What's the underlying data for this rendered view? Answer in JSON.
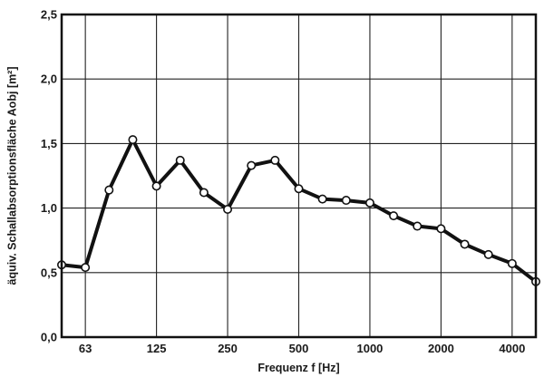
{
  "chart_data": {
    "type": "line",
    "xlabel": "Frequenz f [Hz]",
    "ylabel": "äquiv. Schallabsorptionsfläche Aobj [m²]",
    "x_scale": "log",
    "x_categories": [
      "50",
      "63",
      "80",
      "100",
      "125",
      "160",
      "200",
      "250",
      "315",
      "400",
      "500",
      "630",
      "800",
      "1000",
      "1250",
      "1600",
      "2000",
      "2500",
      "3150",
      "4000",
      "5000"
    ],
    "x_tick_labels": [
      {
        "x": "63",
        "label": "63"
      },
      {
        "x": "125",
        "label": "125"
      },
      {
        "x": "250",
        "label": "250"
      },
      {
        "x": "500",
        "label": "500"
      },
      {
        "x": "1000",
        "label": "1000"
      },
      {
        "x": "2000",
        "label": "2000"
      },
      {
        "x": "4000",
        "label": "4000"
      }
    ],
    "ylim": [
      0,
      2.5
    ],
    "y_ticks": [
      0,
      0.5,
      1.0,
      1.5,
      2.0,
      2.5
    ],
    "y_tick_labels": [
      "0,0",
      "0,5",
      "1,0",
      "1,5",
      "2,0",
      "2,5"
    ],
    "grid": true,
    "series": [
      {
        "values": [
          0.56,
          0.54,
          1.14,
          1.53,
          1.17,
          1.37,
          1.12,
          0.99,
          1.33,
          1.37,
          1.15,
          1.07,
          1.06,
          1.04,
          0.94,
          0.86,
          0.84,
          0.72,
          0.64,
          0.57,
          0.43
        ],
        "color": "#111111",
        "marker": "open-circle"
      }
    ]
  }
}
